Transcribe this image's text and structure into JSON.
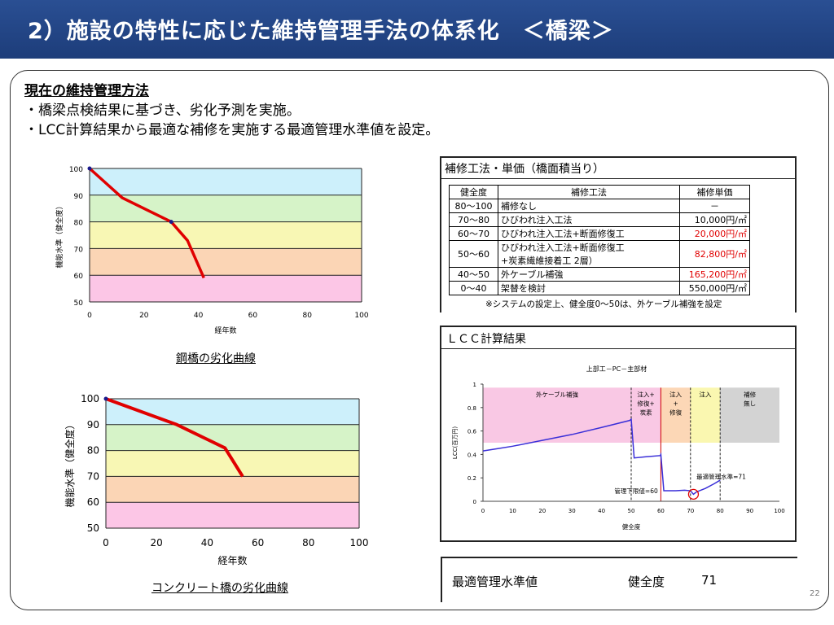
{
  "header": {
    "title": "2）施設の特性に応じた維持管理手法の体系化　＜橋梁＞"
  },
  "intro": {
    "heading": "現在の維持管理方法",
    "line1": "・橋梁点検結果に基づき、劣化予測を実施。",
    "line2": "・LCC計算結果から最適な補修を実施する最適管理水準値を設定。"
  },
  "captions": {
    "steel": "鋼橋の劣化曲線",
    "concrete": "コンクリート橋の劣化曲線"
  },
  "repair": {
    "title": "補修工法・単価（橋面積当り）",
    "headers": [
      "健全度",
      "補修工法",
      "補修単価"
    ],
    "rows": [
      {
        "range": "80～100",
        "method": "補修なし",
        "method2": "",
        "price": "－",
        "red": false
      },
      {
        "range": "70～80",
        "method": "ひびわれ注入工法",
        "method2": "",
        "price": "10,000円/㎡",
        "red": false
      },
      {
        "range": "60～70",
        "method": "ひびわれ注入工法+断面修復工",
        "method2": "",
        "price": "20,000円/㎡",
        "red": true
      },
      {
        "range": "50～60",
        "method": "ひびわれ注入工法+断面修復工",
        "method2": "+炭素繊維接着工 2層）",
        "price": "82,800円/㎡",
        "red": true
      },
      {
        "range": "40～50",
        "method": "外ケーブル補強",
        "method2": "",
        "price": "165,200円/㎡",
        "red": true
      },
      {
        "range": "0～40",
        "method": "架替を検討",
        "method2": "",
        "price": "550,000円/㎡",
        "red": false
      }
    ],
    "note": "※システムの設定上、健全度0～50は、外ケーブル補強を設定"
  },
  "lcc": {
    "box_title": "ＬＣＣ計算結果"
  },
  "result": {
    "label": "最適管理水準値",
    "key": "健全度",
    "value": "71"
  },
  "page_number": "22",
  "chart_data": [
    {
      "type": "line",
      "title": "",
      "xlabel": "経年数",
      "ylabel": "機能水準（健全度）",
      "xlim": [
        0,
        100
      ],
      "ylim": [
        50,
        100
      ],
      "xticks": [
        0,
        20,
        40,
        60,
        80,
        100
      ],
      "yticks": [
        50,
        60,
        70,
        80,
        90,
        100
      ],
      "bands": [
        {
          "from": 90,
          "to": 100,
          "color": "#cdf0fb"
        },
        {
          "from": 80,
          "to": 90,
          "color": "#d6f3c8"
        },
        {
          "from": 70,
          "to": 80,
          "color": "#f8f7b4"
        },
        {
          "from": 60,
          "to": 70,
          "color": "#fbd5b5"
        },
        {
          "from": 50,
          "to": 60,
          "color": "#fcc6e6"
        }
      ],
      "series": [
        {
          "x": [
            0,
            12,
            30,
            36,
            42
          ],
          "y": [
            100,
            89,
            80,
            73,
            59
          ],
          "color": "#e00000"
        }
      ],
      "markers": [
        {
          "x": 0,
          "y": 100
        },
        {
          "x": 30,
          "y": 80
        }
      ]
    },
    {
      "type": "line",
      "title": "",
      "xlabel": "経年数",
      "ylabel": "機能水準（健全度）",
      "xlim": [
        0,
        100
      ],
      "ylim": [
        50,
        100
      ],
      "xticks": [
        0,
        20,
        40,
        60,
        80,
        100
      ],
      "yticks": [
        50,
        60,
        70,
        80,
        90,
        100
      ],
      "bands": [
        {
          "from": 90,
          "to": 100,
          "color": "#cdf0fb"
        },
        {
          "from": 80,
          "to": 90,
          "color": "#d6f3c8"
        },
        {
          "from": 70,
          "to": 80,
          "color": "#f8f7b4"
        },
        {
          "from": 60,
          "to": 70,
          "color": "#fbd5b5"
        },
        {
          "from": 50,
          "to": 60,
          "color": "#fcc6e6"
        }
      ],
      "series": [
        {
          "x": [
            0,
            28,
            47,
            54
          ],
          "y": [
            100,
            90,
            81,
            70
          ],
          "color": "#e00000"
        }
      ],
      "markers": [
        {
          "x": 0,
          "y": 100
        }
      ]
    },
    {
      "type": "line",
      "title": "上部工－PC－主部材",
      "xlabel": "健全度",
      "ylabel": "LCC(百万円)",
      "xlim": [
        0,
        100
      ],
      "ylim": [
        0,
        1
      ],
      "xticks": [
        0,
        10,
        20,
        30,
        40,
        50,
        60,
        70,
        80,
        90,
        100
      ],
      "yticks": [
        0,
        0.2,
        0.4,
        0.6,
        0.8,
        1
      ],
      "regions": [
        {
          "from": 0,
          "to": 50,
          "color": "#f9c8e4",
          "label": "外ケーブル補強"
        },
        {
          "from": 50,
          "to": 60,
          "color": "#f9c8e4",
          "label": "注入+\n修復+\n炭素"
        },
        {
          "from": 60,
          "to": 70,
          "color": "#fcd7b6",
          "label": "注入\n+\n修復"
        },
        {
          "from": 70,
          "to": 80,
          "color": "#faf7b0",
          "label": "注入"
        },
        {
          "from": 80,
          "to": 100,
          "color": "#d3d3d3",
          "label": "補修\n無し"
        }
      ],
      "series": [
        {
          "color": "#3a2fd8",
          "x": [
            0,
            5,
            10,
            20,
            30,
            40,
            49.5,
            50,
            51,
            55,
            59.8,
            60,
            61,
            65,
            68,
            70,
            71,
            72,
            75,
            78,
            80
          ],
          "y": [
            0.43,
            0.45,
            0.47,
            0.52,
            0.57,
            0.63,
            0.69,
            0.7,
            0.37,
            0.38,
            0.39,
            0.4,
            0.09,
            0.09,
            0.095,
            0.09,
            0.06,
            0.08,
            0.11,
            0.15,
            0.18
          ]
        }
      ],
      "vlines": [
        {
          "x": 50,
          "color": "#222222"
        },
        {
          "x": 60,
          "color": "#d00000"
        },
        {
          "x": 70,
          "color": "#222222"
        },
        {
          "x": 80,
          "color": "#222222"
        }
      ],
      "annotations": [
        {
          "text": "最適管理水準=71",
          "x": 72,
          "y": 0.19
        },
        {
          "text": "管理下限値=60",
          "x": 59,
          "y": 0.07
        }
      ],
      "highlight": {
        "x": 71,
        "y": 0.06,
        "color": "#e00000"
      }
    }
  ]
}
